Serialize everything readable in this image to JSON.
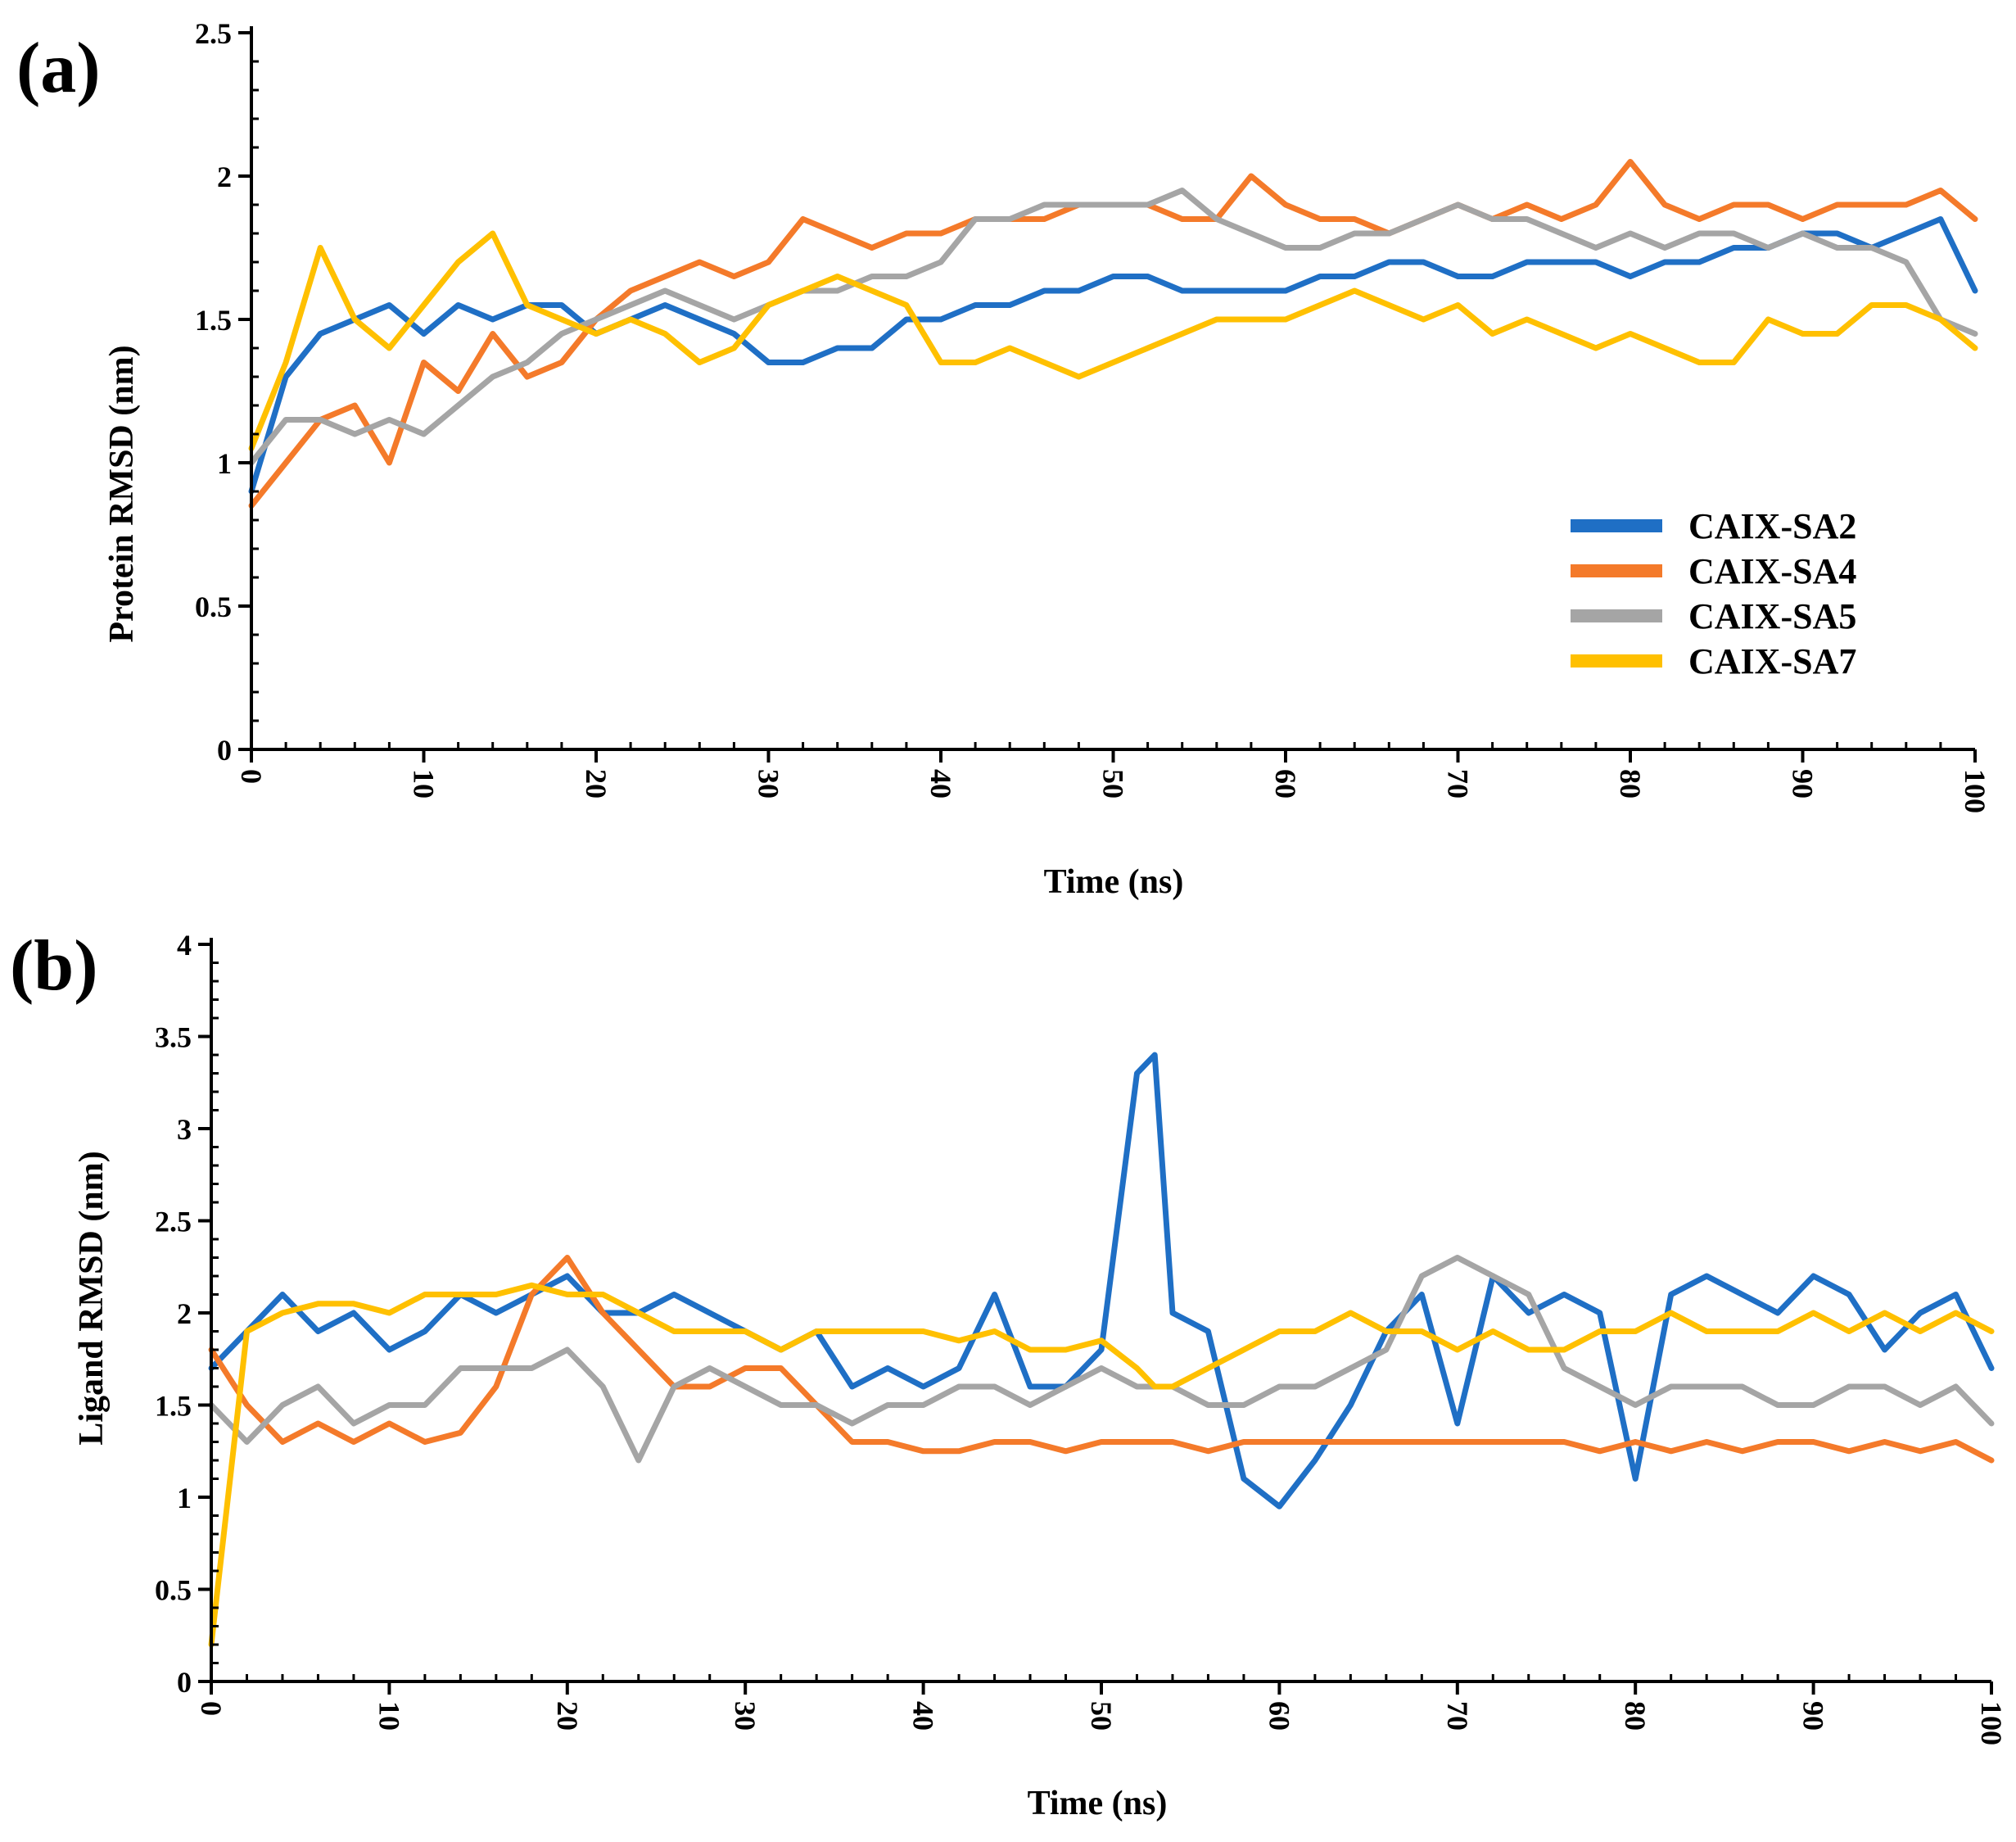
{
  "chart_data": [
    {
      "panel": "(a)",
      "type": "line",
      "xlabel": "Time (ns)",
      "ylabel": "Protein RMSD (nm)",
      "xlim": [
        0,
        100
      ],
      "ylim": [
        0,
        2.5
      ],
      "xticks": [
        "0",
        "10",
        "20",
        "30",
        "40",
        "50",
        "60",
        "70",
        "80",
        "90",
        "100"
      ],
      "yticks": [
        "0",
        "0.5",
        "1",
        "1.5",
        "2",
        "2.5"
      ],
      "grid": false,
      "legend": "right, lower-middle",
      "x": [
        0,
        2,
        4,
        6,
        8,
        10,
        12,
        14,
        16,
        18,
        20,
        22,
        24,
        26,
        28,
        30,
        32,
        34,
        36,
        38,
        40,
        42,
        44,
        46,
        48,
        50,
        52,
        54,
        56,
        58,
        60,
        62,
        64,
        66,
        68,
        70,
        72,
        74,
        76,
        78,
        80,
        82,
        84,
        86,
        88,
        90,
        92,
        94,
        96,
        98,
        100
      ],
      "series": [
        {
          "name": "CAIX-SA2",
          "color": "#1f6fc5",
          "values": [
            0.9,
            1.3,
            1.45,
            1.5,
            1.55,
            1.45,
            1.55,
            1.5,
            1.55,
            1.55,
            1.45,
            1.5,
            1.55,
            1.5,
            1.45,
            1.35,
            1.35,
            1.4,
            1.4,
            1.5,
            1.5,
            1.55,
            1.55,
            1.6,
            1.6,
            1.65,
            1.65,
            1.6,
            1.6,
            1.6,
            1.6,
            1.65,
            1.65,
            1.7,
            1.7,
            1.65,
            1.65,
            1.7,
            1.7,
            1.7,
            1.65,
            1.7,
            1.7,
            1.75,
            1.75,
            1.8,
            1.8,
            1.75,
            1.8,
            1.85,
            1.6
          ]
        },
        {
          "name": "CAIX-SA4",
          "color": "#f47a2a",
          "values": [
            0.85,
            1.0,
            1.15,
            1.2,
            1.0,
            1.35,
            1.25,
            1.45,
            1.3,
            1.35,
            1.5,
            1.6,
            1.65,
            1.7,
            1.65,
            1.7,
            1.85,
            1.8,
            1.75,
            1.8,
            1.8,
            1.85,
            1.85,
            1.85,
            1.9,
            1.9,
            1.9,
            1.85,
            1.85,
            2.0,
            1.9,
            1.85,
            1.85,
            1.8,
            1.85,
            1.9,
            1.85,
            1.9,
            1.85,
            1.9,
            2.05,
            1.9,
            1.85,
            1.9,
            1.9,
            1.85,
            1.9,
            1.9,
            1.9,
            1.95,
            1.85
          ]
        },
        {
          "name": "CAIX-SA5",
          "color": "#a5a5a5",
          "values": [
            1.0,
            1.15,
            1.15,
            1.1,
            1.15,
            1.1,
            1.2,
            1.3,
            1.35,
            1.45,
            1.5,
            1.55,
            1.6,
            1.55,
            1.5,
            1.55,
            1.6,
            1.6,
            1.65,
            1.65,
            1.7,
            1.85,
            1.85,
            1.9,
            1.9,
            1.9,
            1.9,
            1.95,
            1.85,
            1.8,
            1.75,
            1.75,
            1.8,
            1.8,
            1.85,
            1.9,
            1.85,
            1.85,
            1.8,
            1.75,
            1.8,
            1.75,
            1.8,
            1.8,
            1.75,
            1.8,
            1.75,
            1.75,
            1.7,
            1.5,
            1.45
          ]
        },
        {
          "name": "CAIX-SA7",
          "color": "#ffc000",
          "values": [
            1.05,
            1.35,
            1.75,
            1.5,
            1.4,
            1.55,
            1.7,
            1.8,
            1.55,
            1.5,
            1.45,
            1.5,
            1.45,
            1.35,
            1.4,
            1.55,
            1.6,
            1.65,
            1.6,
            1.55,
            1.35,
            1.35,
            1.4,
            1.35,
            1.3,
            1.35,
            1.4,
            1.45,
            1.5,
            1.5,
            1.5,
            1.55,
            1.6,
            1.55,
            1.5,
            1.55,
            1.45,
            1.5,
            1.45,
            1.4,
            1.45,
            1.4,
            1.35,
            1.35,
            1.5,
            1.45,
            1.45,
            1.55,
            1.55,
            1.5,
            1.4
          ]
        }
      ]
    },
    {
      "panel": "(b)",
      "type": "line",
      "xlabel": "Time (ns)",
      "ylabel": "Ligand RMSD (nm)",
      "xlim": [
        0,
        100
      ],
      "ylim": [
        0,
        4
      ],
      "xticks": [
        "0",
        "10",
        "20",
        "30",
        "40",
        "50",
        "60",
        "70",
        "80",
        "90",
        "100"
      ],
      "yticks": [
        "0",
        "0.5",
        "1",
        "1.5",
        "2",
        "2.5",
        "3",
        "3.5",
        "4"
      ],
      "grid": false,
      "x": [
        0,
        2,
        4,
        6,
        8,
        10,
        12,
        14,
        16,
        18,
        20,
        22,
        24,
        26,
        28,
        30,
        32,
        34,
        36,
        38,
        40,
        42,
        44,
        46,
        48,
        50,
        52,
        53,
        54,
        56,
        58,
        60,
        62,
        64,
        66,
        68,
        70,
        72,
        74,
        76,
        78,
        80,
        82,
        84,
        86,
        88,
        90,
        92,
        94,
        96,
        98,
        100
      ],
      "series": [
        {
          "name": "CAIX-SA2",
          "color": "#1f6fc5",
          "values": [
            1.7,
            1.9,
            2.1,
            1.9,
            2.0,
            1.8,
            1.9,
            2.1,
            2.0,
            2.1,
            2.2,
            2.0,
            2.0,
            2.1,
            2.0,
            1.9,
            1.8,
            1.9,
            1.6,
            1.7,
            1.6,
            1.7,
            2.1,
            1.6,
            1.6,
            1.8,
            3.3,
            3.4,
            2.0,
            1.9,
            1.1,
            0.95,
            1.2,
            1.5,
            1.9,
            2.1,
            1.4,
            2.2,
            2.0,
            2.1,
            2.0,
            1.1,
            2.1,
            2.2,
            2.1,
            2.0,
            2.2,
            2.1,
            1.8,
            2.0,
            2.1,
            1.7
          ]
        },
        {
          "name": "CAIX-SA4",
          "color": "#f47a2a",
          "values": [
            1.8,
            1.5,
            1.3,
            1.4,
            1.3,
            1.4,
            1.3,
            1.35,
            1.6,
            2.1,
            2.3,
            2.0,
            1.8,
            1.6,
            1.6,
            1.7,
            1.7,
            1.5,
            1.3,
            1.3,
            1.25,
            1.25,
            1.3,
            1.3,
            1.25,
            1.3,
            1.3,
            1.3,
            1.3,
            1.25,
            1.3,
            1.3,
            1.3,
            1.3,
            1.3,
            1.3,
            1.3,
            1.3,
            1.3,
            1.3,
            1.25,
            1.3,
            1.25,
            1.3,
            1.25,
            1.3,
            1.3,
            1.25,
            1.3,
            1.25,
            1.3,
            1.2
          ]
        },
        {
          "name": "CAIX-SA5",
          "color": "#a5a5a5",
          "values": [
            1.5,
            1.3,
            1.5,
            1.6,
            1.4,
            1.5,
            1.5,
            1.7,
            1.7,
            1.7,
            1.8,
            1.6,
            1.2,
            1.6,
            1.7,
            1.6,
            1.5,
            1.5,
            1.4,
            1.5,
            1.5,
            1.6,
            1.6,
            1.5,
            1.6,
            1.7,
            1.6,
            1.6,
            1.6,
            1.5,
            1.5,
            1.6,
            1.6,
            1.7,
            1.8,
            2.2,
            2.3,
            2.2,
            2.1,
            1.7,
            1.6,
            1.5,
            1.6,
            1.6,
            1.6,
            1.5,
            1.5,
            1.6,
            1.6,
            1.5,
            1.6,
            1.4
          ]
        },
        {
          "name": "CAIX-SA7",
          "color": "#ffc000",
          "values": [
            0.2,
            1.9,
            2.0,
            2.05,
            2.05,
            2.0,
            2.1,
            2.1,
            2.1,
            2.15,
            2.1,
            2.1,
            2.0,
            1.9,
            1.9,
            1.9,
            1.8,
            1.9,
            1.9,
            1.9,
            1.9,
            1.85,
            1.9,
            1.8,
            1.8,
            1.85,
            1.7,
            1.6,
            1.6,
            1.7,
            1.8,
            1.9,
            1.9,
            2.0,
            1.9,
            1.9,
            1.8,
            1.9,
            1.8,
            1.8,
            1.9,
            1.9,
            2.0,
            1.9,
            1.9,
            1.9,
            2.0,
            1.9,
            2.0,
            1.9,
            2.0,
            1.9
          ]
        }
      ]
    }
  ]
}
